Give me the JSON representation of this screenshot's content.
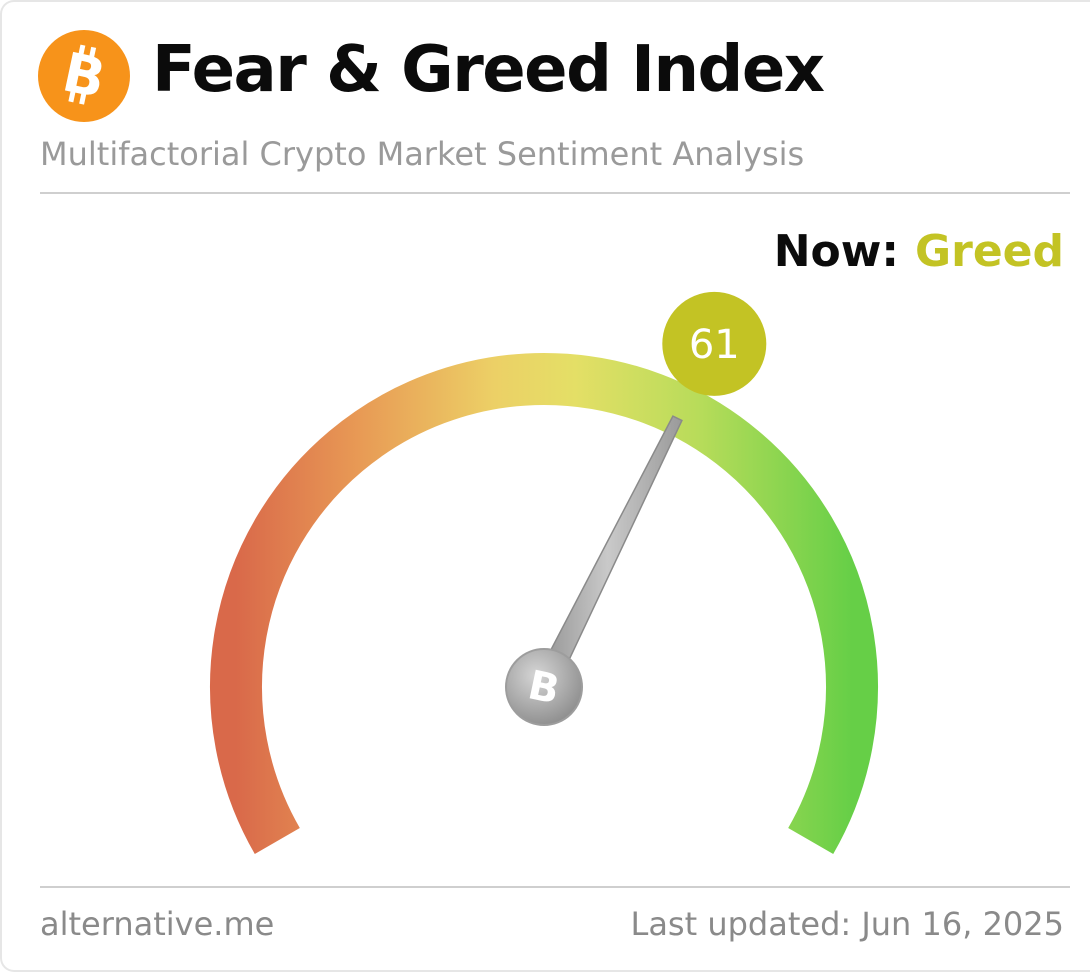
{
  "header": {
    "title": "Fear & Greed Index",
    "subtitle": "Multifactorial Crypto Market Sentiment Analysis",
    "logo_icon": "bitcoin-icon",
    "logo_color": "#f7931a"
  },
  "status": {
    "label": "Now:",
    "classification": "Greed",
    "classification_color": "#c3c324"
  },
  "gauge": {
    "value": 61,
    "value_text": "61",
    "min": 0,
    "max": 100,
    "badge_color": "#c3c324",
    "colors": {
      "fear": "#d9694a",
      "neutral": "#e7dc62",
      "greed": "#66cf47"
    },
    "hub_icon": "bitcoin-icon"
  },
  "footer": {
    "source": "alternative.me",
    "updated": "Last updated: Jun 16, 2025"
  }
}
